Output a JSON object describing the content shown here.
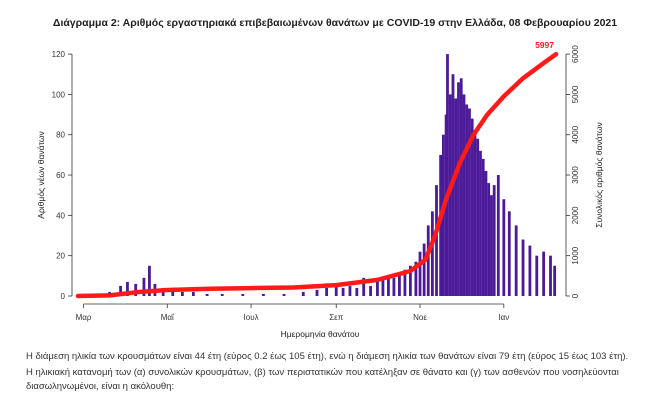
{
  "chart_data": {
    "type": "bar",
    "title": "Διάγραμμα 2: Αριθμός εργαστηριακά επιβεβαιωμένων θανάτων με COVID-19 στην Ελλάδα, 08 Φεβρουαρίου 2021",
    "xlabel": "Ημερομηνία θανάτου",
    "ylabel": "Αριθμός νέων θανάτων",
    "y2label": "Συνολικός αριθμός θανάτων",
    "ylim": [
      0,
      125
    ],
    "y2lim": [
      0,
      6250
    ],
    "yticks": [
      0,
      20,
      40,
      60,
      80,
      100,
      120
    ],
    "y2ticks": [
      0,
      1000,
      2000,
      3000,
      4000,
      5000,
      6000
    ],
    "xlim": [
      "2020-02-26",
      "2021-02-08"
    ],
    "xticks": [
      {
        "label": "Μαρ",
        "date": "2020-03-01"
      },
      {
        "label": "Μαΐ",
        "date": "2020-05-01"
      },
      {
        "label": "Ιουλ",
        "date": "2020-07-01"
      },
      {
        "label": "Σεπ",
        "date": "2020-09-01"
      },
      {
        "label": "Νοε",
        "date": "2020-11-01"
      },
      {
        "label": "Ιαν",
        "date": "2021-01-01"
      }
    ],
    "series": [
      {
        "name": "Αριθμός νέων θανάτων",
        "axis": "left",
        "color": "#4b1a99",
        "kind": "bar",
        "points": [
          [
            "2020-03-12",
            1
          ],
          [
            "2020-03-20",
            2
          ],
          [
            "2020-03-28",
            5
          ],
          [
            "2020-04-02",
            7
          ],
          [
            "2020-04-08",
            6
          ],
          [
            "2020-04-14",
            9
          ],
          [
            "2020-04-18",
            15
          ],
          [
            "2020-04-22",
            6
          ],
          [
            "2020-04-28",
            4
          ],
          [
            "2020-05-05",
            3
          ],
          [
            "2020-05-12",
            2
          ],
          [
            "2020-05-20",
            2
          ],
          [
            "2020-05-30",
            1
          ],
          [
            "2020-06-10",
            1
          ],
          [
            "2020-06-25",
            1
          ],
          [
            "2020-07-10",
            1
          ],
          [
            "2020-07-25",
            1
          ],
          [
            "2020-08-08",
            2
          ],
          [
            "2020-08-18",
            3
          ],
          [
            "2020-08-25",
            4
          ],
          [
            "2020-09-01",
            6
          ],
          [
            "2020-09-06",
            4
          ],
          [
            "2020-09-11",
            5
          ],
          [
            "2020-09-16",
            4
          ],
          [
            "2020-09-21",
            9
          ],
          [
            "2020-09-26",
            5
          ],
          [
            "2020-10-01",
            7
          ],
          [
            "2020-10-05",
            8
          ],
          [
            "2020-10-09",
            10
          ],
          [
            "2020-10-13",
            9
          ],
          [
            "2020-10-17",
            11
          ],
          [
            "2020-10-21",
            13
          ],
          [
            "2020-10-25",
            15
          ],
          [
            "2020-10-29",
            17
          ],
          [
            "2020-11-01",
            22
          ],
          [
            "2020-11-04",
            26
          ],
          [
            "2020-11-07",
            35
          ],
          [
            "2020-11-10",
            42
          ],
          [
            "2020-11-13",
            55
          ],
          [
            "2020-11-16",
            70
          ],
          [
            "2020-11-18",
            80
          ],
          [
            "2020-11-20",
            90
          ],
          [
            "2020-11-21",
            120
          ],
          [
            "2020-11-23",
            100
          ],
          [
            "2020-11-25",
            110
          ],
          [
            "2020-11-27",
            98
          ],
          [
            "2020-11-29",
            106
          ],
          [
            "2020-12-01",
            108
          ],
          [
            "2020-12-03",
            100
          ],
          [
            "2020-12-05",
            95
          ],
          [
            "2020-12-07",
            93
          ],
          [
            "2020-12-09",
            88
          ],
          [
            "2020-12-11",
            82
          ],
          [
            "2020-12-13",
            78
          ],
          [
            "2020-12-15",
            72
          ],
          [
            "2020-12-17",
            68
          ],
          [
            "2020-12-19",
            62
          ],
          [
            "2020-12-21",
            56
          ],
          [
            "2020-12-23",
            50
          ],
          [
            "2020-12-25",
            55
          ],
          [
            "2020-12-28",
            60
          ],
          [
            "2021-01-01",
            48
          ],
          [
            "2021-01-05",
            42
          ],
          [
            "2021-01-10",
            35
          ],
          [
            "2021-01-15",
            28
          ],
          [
            "2021-01-20",
            25
          ],
          [
            "2021-01-25",
            20
          ],
          [
            "2021-01-30",
            22
          ],
          [
            "2021-02-04",
            20
          ],
          [
            "2021-02-07",
            15
          ]
        ]
      },
      {
        "name": "Συνολικός αριθμός θανάτων",
        "axis": "right",
        "color": "#ff1a1a",
        "kind": "line",
        "points": [
          [
            "2020-02-26",
            0
          ],
          [
            "2020-03-20",
            15
          ],
          [
            "2020-04-10",
            100
          ],
          [
            "2020-05-01",
            150
          ],
          [
            "2020-06-01",
            180
          ],
          [
            "2020-07-01",
            195
          ],
          [
            "2020-08-01",
            210
          ],
          [
            "2020-09-01",
            270
          ],
          [
            "2020-10-01",
            400
          ],
          [
            "2020-10-25",
            620
          ],
          [
            "2020-11-05",
            900
          ],
          [
            "2020-11-12",
            1500
          ],
          [
            "2020-11-20",
            2400
          ],
          [
            "2020-11-30",
            3300
          ],
          [
            "2020-12-10",
            4000
          ],
          [
            "2020-12-20",
            4500
          ],
          [
            "2021-01-01",
            4950
          ],
          [
            "2021-01-15",
            5400
          ],
          [
            "2021-01-31",
            5800
          ],
          [
            "2021-02-08",
            5997
          ]
        ],
        "end_label": "5997"
      }
    ]
  },
  "text": {
    "paragraph1": "Η διάμεση ηλικία των κρουσμάτων είναι 44 έτη (εύρος 0.2 έως 105 έτη), ενώ η διάμεση ηλικία των θανάτων είναι 79 έτη (εύρος 15 έως 103 έτη).",
    "paragraph2": "Η ηλικιακή κατανομή των (α) συνολικών κρουσμάτων, (β) των περιστατικών που κατέληξαν σε θάνατο και (γ) των ασθενών που νοσηλεύονται διασωληνωμένοι, είναι η ακόλουθη:"
  }
}
